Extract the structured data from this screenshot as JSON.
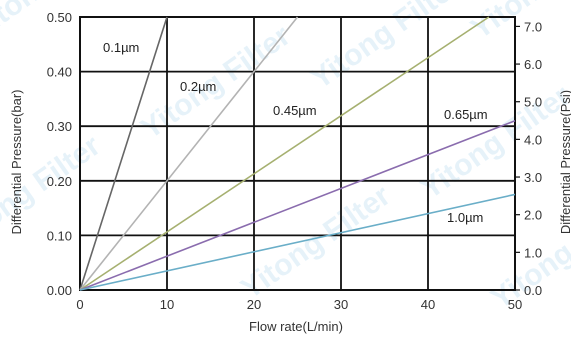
{
  "chart_data": {
    "type": "line",
    "xlabel": "Flow rate(L/min)",
    "ylabel_left": "Differential Pressure(bar)",
    "ylabel_right": "Differential Pressure(Psi)",
    "xlim": [
      0,
      50
    ],
    "ylim_left": [
      0,
      0.5
    ],
    "ylim_right": [
      0,
      7.25
    ],
    "grid": true,
    "x_ticks": [
      "0",
      "10",
      "20",
      "30",
      "40",
      "50"
    ],
    "y_left_ticks": [
      "0.00",
      "0.10",
      "0.20",
      "0.30",
      "0.40",
      "0.50"
    ],
    "y_right_ticks": [
      "0.0",
      "1.0",
      "2.0",
      "3.0",
      "4.0",
      "5.0",
      "6.0",
      "7.0"
    ],
    "watermark": "Yitong Filter",
    "series": [
      {
        "name": "0.1µm",
        "color": "#666666",
        "x": [
          0,
          10
        ],
        "y": [
          0,
          0.5
        ]
      },
      {
        "name": "0.2µm",
        "color": "#b3b3b3",
        "x": [
          0,
          25
        ],
        "y": [
          0,
          0.5
        ]
      },
      {
        "name": "0.45µm",
        "color": "#a6b070",
        "x": [
          0,
          47
        ],
        "y": [
          0,
          0.5
        ]
      },
      {
        "name": "0.65µm",
        "color": "#8a6cae",
        "x": [
          0,
          50
        ],
        "y": [
          0,
          0.31
        ]
      },
      {
        "name": "1.0µm",
        "color": "#6aaec8",
        "x": [
          0,
          50
        ],
        "y": [
          0,
          0.175
        ]
      }
    ]
  }
}
